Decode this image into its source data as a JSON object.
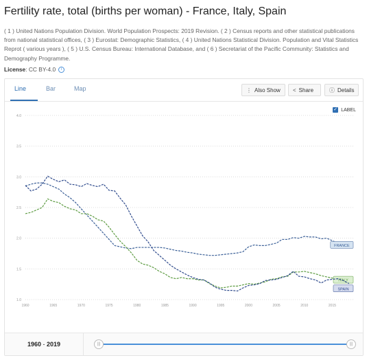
{
  "header": {
    "title": "Fertility rate, total (births per woman) - France, Italy, Spain",
    "source": "( 1 ) United Nations Population Division. World Population Prospects: 2019 Revision. ( 2 ) Census reports and other statistical publications from national statistical offices, ( 3 ) Eurostat: Demographic Statistics, ( 4 ) United Nations Statistical Division. Population and Vital Statistics Reprot ( various years ), ( 5 ) U.S. Census Bureau: International Database, and ( 6 ) Secretariat of the Pacific Community: Statistics and Demography Programme.",
    "license_label": "License",
    "license_value": ": CC BY-4.0"
  },
  "tabs": [
    {
      "label": "Line"
    },
    {
      "label": "Bar"
    },
    {
      "label": "Map"
    }
  ],
  "toolbar": {
    "also_show": "Also Show",
    "share": "Share",
    "details": "Details"
  },
  "label_toggle": "LABEL",
  "footer": {
    "range_start": "1960",
    "range_sep": " - ",
    "range_end": "2019"
  },
  "colors": {
    "france": "#3a5f97",
    "italy": "#5b9a3f",
    "spain": "#2e4a8c",
    "accent": "#2f6fb3"
  },
  "chart_data": {
    "type": "line",
    "x": [
      1960,
      1961,
      1962,
      1963,
      1964,
      1965,
      1966,
      1967,
      1968,
      1969,
      1970,
      1971,
      1972,
      1973,
      1974,
      1975,
      1976,
      1977,
      1978,
      1979,
      1980,
      1981,
      1982,
      1983,
      1984,
      1985,
      1986,
      1987,
      1988,
      1989,
      1990,
      1991,
      1992,
      1993,
      1994,
      1995,
      1996,
      1997,
      1998,
      1999,
      2000,
      2001,
      2002,
      2003,
      2004,
      2005,
      2006,
      2007,
      2008,
      2009,
      2010,
      2011,
      2012,
      2013,
      2014,
      2015,
      2016,
      2017,
      2018
    ],
    "x_ticks": [
      1960,
      1965,
      1970,
      1975,
      1980,
      1985,
      1990,
      1995,
      2000,
      2005,
      2010,
      2015
    ],
    "y_ticks": [
      "1.0",
      "1.5",
      "2.0",
      "2.5",
      "3.0",
      "3.5",
      "4.0"
    ],
    "ylim": [
      1.0,
      4.0
    ],
    "xlim": [
      1960,
      2019
    ],
    "grid": true,
    "series": [
      {
        "name": "FRANCE",
        "values": [
          2.85,
          2.88,
          2.9,
          2.9,
          2.88,
          2.84,
          2.8,
          2.72,
          2.66,
          2.58,
          2.48,
          2.38,
          2.28,
          2.18,
          2.08,
          1.98,
          1.88,
          1.86,
          1.84,
          1.83,
          1.85,
          1.85,
          1.85,
          1.85,
          1.85,
          1.84,
          1.82,
          1.8,
          1.79,
          1.77,
          1.76,
          1.74,
          1.73,
          1.72,
          1.72,
          1.73,
          1.74,
          1.75,
          1.76,
          1.78,
          1.86,
          1.89,
          1.88,
          1.88,
          1.9,
          1.92,
          1.98,
          1.98,
          2.01,
          2.0,
          2.03,
          2.02,
          2.02,
          1.99,
          2.0,
          1.96,
          1.92,
          1.9,
          1.88
        ]
      },
      {
        "name": "ITALY",
        "values": [
          2.4,
          2.42,
          2.46,
          2.5,
          2.64,
          2.6,
          2.58,
          2.52,
          2.48,
          2.46,
          2.4,
          2.4,
          2.36,
          2.3,
          2.28,
          2.18,
          2.06,
          1.95,
          1.86,
          1.76,
          1.64,
          1.58,
          1.56,
          1.52,
          1.46,
          1.42,
          1.36,
          1.34,
          1.36,
          1.34,
          1.34,
          1.32,
          1.32,
          1.26,
          1.22,
          1.19,
          1.2,
          1.22,
          1.22,
          1.24,
          1.26,
          1.25,
          1.27,
          1.29,
          1.33,
          1.34,
          1.37,
          1.38,
          1.45,
          1.45,
          1.46,
          1.44,
          1.42,
          1.39,
          1.37,
          1.35,
          1.34,
          1.32,
          1.29
        ]
      },
      {
        "name": "SPAIN",
        "values": [
          2.86,
          2.77,
          2.8,
          2.88,
          3.01,
          2.96,
          2.92,
          2.95,
          2.88,
          2.87,
          2.84,
          2.89,
          2.86,
          2.84,
          2.88,
          2.78,
          2.77,
          2.65,
          2.54,
          2.36,
          2.2,
          2.04,
          1.94,
          1.8,
          1.72,
          1.64,
          1.56,
          1.5,
          1.45,
          1.4,
          1.36,
          1.33,
          1.32,
          1.27,
          1.2,
          1.17,
          1.15,
          1.15,
          1.14,
          1.19,
          1.23,
          1.24,
          1.26,
          1.31,
          1.32,
          1.33,
          1.36,
          1.39,
          1.46,
          1.38,
          1.37,
          1.34,
          1.32,
          1.27,
          1.32,
          1.33,
          1.34,
          1.31,
          1.26
        ]
      }
    ]
  }
}
